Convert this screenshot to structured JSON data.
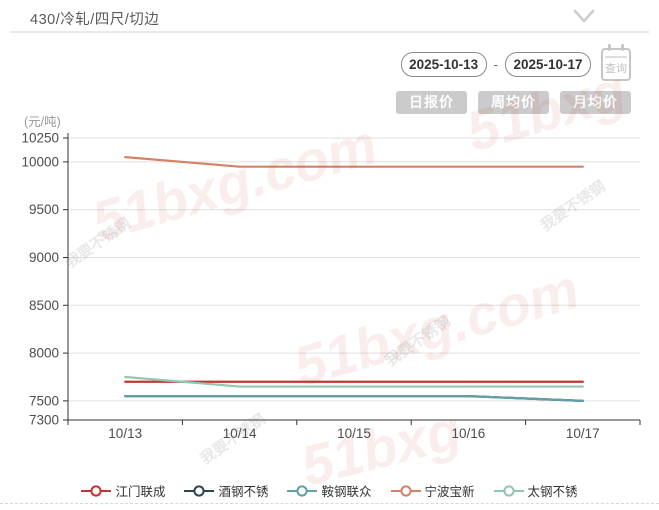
{
  "header": {
    "title": "430/冷轧/四尺/切边"
  },
  "controls": {
    "date_start": "2025-10-13",
    "date_end": "2025-10-17",
    "separator": "-",
    "query_label": "查询",
    "price_tabs": [
      "日报价",
      "周均价",
      "月均价"
    ]
  },
  "watermark": {
    "brand": "51bxg.com",
    "brand_short": "51bxg",
    "slogan": "我要不锈钢"
  },
  "chart_data": {
    "type": "line",
    "title": "430/冷轧/四尺/切边",
    "unit_label": "(元/吨)",
    "categories": [
      "10/13",
      "10/14",
      "10/15",
      "10/16",
      "10/17"
    ],
    "series": [
      {
        "name": "江门联成",
        "color": "#c23531",
        "values": [
          7700,
          7700,
          7700,
          7700,
          7700
        ]
      },
      {
        "name": "酒钢不锈",
        "color": "#2f4554",
        "values": [
          7550,
          7550,
          7550,
          7550,
          7500
        ]
      },
      {
        "name": "鞍钢联众",
        "color": "#61a0a8",
        "values": [
          7550,
          7550,
          7550,
          7550,
          7500
        ]
      },
      {
        "name": "宁波宝新",
        "color": "#d48265",
        "values": [
          10050,
          9950,
          9950,
          9950,
          9950
        ]
      },
      {
        "name": "太钢不锈",
        "color": "#91c7ae",
        "values": [
          7750,
          7650,
          7650,
          7650,
          7650
        ]
      }
    ],
    "y_ticks": [
      7300,
      7500,
      8000,
      8500,
      9000,
      9500,
      10000,
      10250
    ],
    "ylim": [
      7300,
      10250
    ],
    "grid": true,
    "legend_position": "bottom"
  }
}
